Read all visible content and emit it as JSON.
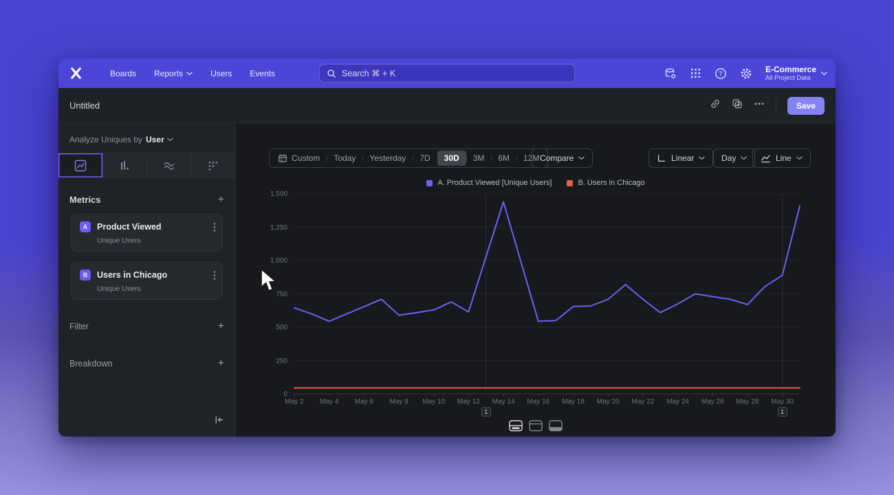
{
  "colors": {
    "accent": "#6f5bf2",
    "nav_bg": "#4c46d8",
    "save_bg": "#8583f3",
    "bg_top": "#4a44d2",
    "bg_bottom": "#9391e0",
    "canvas": "#17191c"
  },
  "nav": {
    "items": [
      "Boards",
      "Reports",
      "Users",
      "Events"
    ],
    "search_placeholder": "Search  ⌘ + K",
    "project_name": "E-Commerce",
    "project_subtitle": "All Project Data"
  },
  "header": {
    "title": "Untitled",
    "save_label": "Save"
  },
  "sidebar": {
    "analyze_prefix": "Analyze Uniques by",
    "analyze_value": "User",
    "metrics_title": "Metrics",
    "metrics": [
      {
        "badge": "A",
        "name": "Product Viewed",
        "subtitle": "Unique Users"
      },
      {
        "badge": "B",
        "name": "Users in Chicago",
        "subtitle": "Unique Users"
      }
    ],
    "filter_label": "Filter",
    "breakdown_label": "Breakdown"
  },
  "toolbar": {
    "ranges": [
      "Custom",
      "Today",
      "Yesterday",
      "7D",
      "30D",
      "3M",
      "6M",
      "12M"
    ],
    "selected_range": "30D",
    "compare_label": "Compare",
    "scale_label": "Linear",
    "interval_label": "Day",
    "chart_type_label": "Line"
  },
  "chart_data": {
    "type": "line",
    "x": [
      "May 2",
      "May 3",
      "May 4",
      "May 5",
      "May 6",
      "May 7",
      "May 8",
      "May 9",
      "May 10",
      "May 11",
      "May 12",
      "May 13",
      "May 14",
      "May 15",
      "May 16",
      "May 17",
      "May 18",
      "May 19",
      "May 20",
      "May 21",
      "May 22",
      "May 23",
      "May 24",
      "May 25",
      "May 26",
      "May 27",
      "May 28",
      "May 29",
      "May 30",
      "May 31"
    ],
    "xtick_labels": [
      "May 2",
      "May 4",
      "May 6",
      "May 8",
      "May 10",
      "May 12",
      "May 14",
      "May 16",
      "May 18",
      "May 20",
      "May 22",
      "May 24",
      "May 26",
      "May 28",
      "May 30"
    ],
    "ylim": [
      0,
      1500
    ],
    "yticks": [
      0,
      250,
      500,
      750,
      1000,
      1250,
      1500
    ],
    "ytick_labels": [
      "0",
      "250",
      "500",
      "750",
      "1,000",
      "1,250",
      "1,500"
    ],
    "grid": "horizontal",
    "legend_position": "top-center",
    "series": [
      {
        "name": "A. Product Viewed [Unique Users]",
        "color": "#6f5ef2",
        "values": [
          645,
          600,
          545,
          600,
          655,
          710,
          590,
          610,
          630,
          690,
          615,
          1030,
          1440,
          990,
          545,
          550,
          655,
          660,
          710,
          820,
          710,
          610,
          675,
          750,
          730,
          710,
          670,
          805,
          890,
          1410
        ]
      },
      {
        "name": "B. Users in Chicago",
        "color": "#e2604a",
        "values": [
          45,
          45,
          45,
          45,
          45,
          45,
          45,
          45,
          45,
          45,
          45,
          45,
          45,
          45,
          45,
          45,
          45,
          45,
          45,
          45,
          45,
          45,
          45,
          45,
          45,
          45,
          45,
          45,
          45,
          45
        ]
      }
    ],
    "annotations": [
      {
        "x_index": 11,
        "label": "1"
      },
      {
        "x_index": 28,
        "label": "1"
      }
    ]
  }
}
